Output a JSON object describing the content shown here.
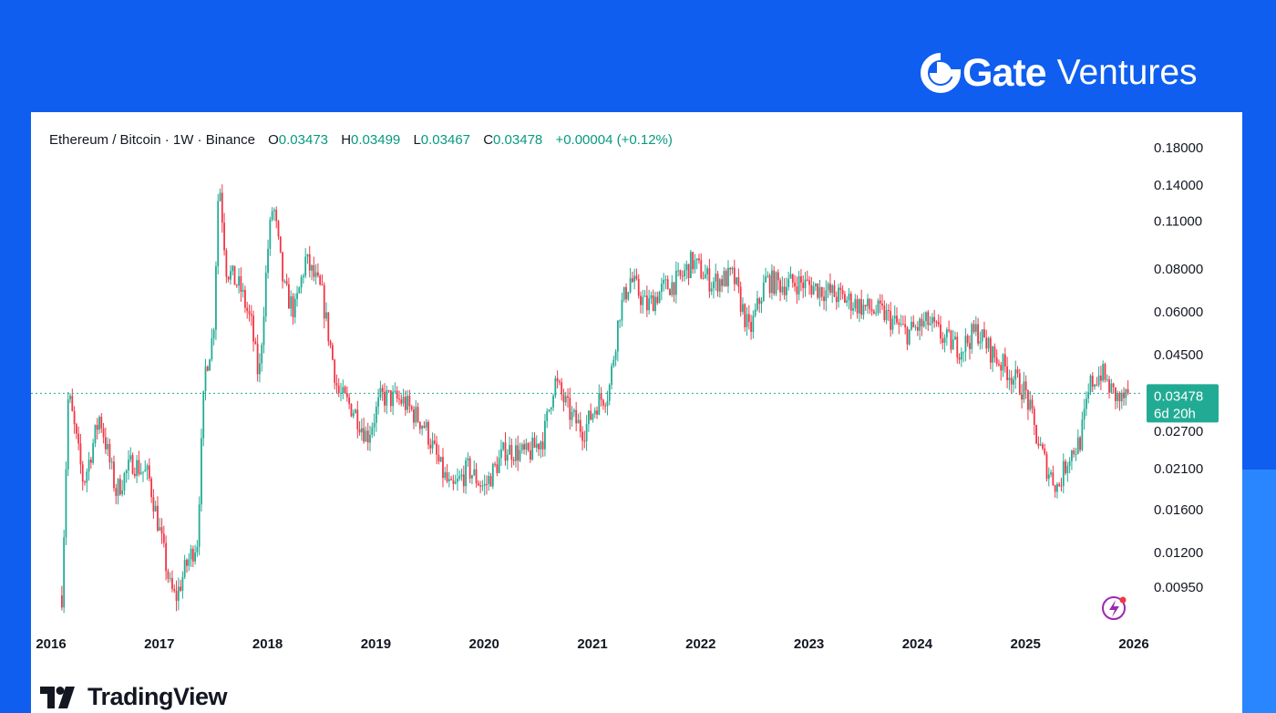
{
  "brand": {
    "name_bold": "Gate",
    "name_light": "Ventures",
    "logo_icon": "gate-logo-icon"
  },
  "legend": {
    "symbol": "Ethereum / Bitcoin · 1W · Binance",
    "open_label": "O",
    "open": "0.03473",
    "high_label": "H",
    "high": "0.03499",
    "low_label": "L",
    "low": "0.03467",
    "close_label": "C",
    "close": "0.03478",
    "change": "+0.00004 (+0.12%)"
  },
  "price_badge": {
    "price": "0.03478",
    "countdown": "6d 20h",
    "color": "#22ab94"
  },
  "footer": {
    "brand": "TradingView",
    "icon": "tradingview-logo-icon"
  },
  "colors": {
    "up": "#22ab94",
    "down": "#f23645",
    "accent": "#0f5ef0"
  },
  "chart_data": {
    "type": "candlestick",
    "title": "",
    "scale": "log",
    "ylim": [
      0.0075,
      0.19
    ],
    "xlim": [
      2016.0,
      2026.0
    ],
    "y_ticks": [
      0.18,
      0.14,
      0.11,
      0.08,
      0.06,
      0.045,
      0.027,
      0.021,
      0.016,
      0.012,
      0.0095
    ],
    "y_tick_labels": [
      "0.18000",
      "0.14000",
      "0.11000",
      "0.08000",
      "0.06000",
      "0.04500",
      "0.02700",
      "0.02100",
      "0.01600",
      "0.01200",
      "0.00950"
    ],
    "x_ticks": [
      2016,
      2017,
      2018,
      2019,
      2020,
      2021,
      2022,
      2023,
      2024,
      2025,
      2026
    ],
    "x_tick_labels": [
      "2016",
      "2017",
      "2018",
      "2019",
      "2020",
      "2021",
      "2022",
      "2023",
      "2024",
      "2025",
      "2026"
    ],
    "current_price": 0.03478,
    "interval": "1W",
    "path": [
      [
        2016.1,
        0.009
      ],
      [
        2016.16,
        0.035
      ],
      [
        2016.3,
        0.019
      ],
      [
        2016.45,
        0.03
      ],
      [
        2016.6,
        0.018
      ],
      [
        2016.75,
        0.022
      ],
      [
        2016.9,
        0.02
      ],
      [
        2017.0,
        0.014
      ],
      [
        2017.1,
        0.0095
      ],
      [
        2017.15,
        0.0088
      ],
      [
        2017.25,
        0.011
      ],
      [
        2017.35,
        0.013
      ],
      [
        2017.42,
        0.04
      ],
      [
        2017.5,
        0.052
      ],
      [
        2017.55,
        0.15
      ],
      [
        2017.62,
        0.08
      ],
      [
        2017.75,
        0.07
      ],
      [
        2017.85,
        0.055
      ],
      [
        2017.92,
        0.038
      ],
      [
        2018.0,
        0.09
      ],
      [
        2018.05,
        0.125
      ],
      [
        2018.15,
        0.07
      ],
      [
        2018.25,
        0.06
      ],
      [
        2018.35,
        0.085
      ],
      [
        2018.5,
        0.068
      ],
      [
        2018.65,
        0.035
      ],
      [
        2018.8,
        0.031
      ],
      [
        2018.92,
        0.026
      ],
      [
        2019.05,
        0.034
      ],
      [
        2019.25,
        0.033
      ],
      [
        2019.45,
        0.028
      ],
      [
        2019.6,
        0.021
      ],
      [
        2019.7,
        0.018
      ],
      [
        2019.85,
        0.021
      ],
      [
        2020.0,
        0.0185
      ],
      [
        2020.2,
        0.024
      ],
      [
        2020.4,
        0.023
      ],
      [
        2020.55,
        0.026
      ],
      [
        2020.65,
        0.038
      ],
      [
        2020.8,
        0.03
      ],
      [
        2020.92,
        0.027
      ],
      [
        2021.05,
        0.033
      ],
      [
        2021.15,
        0.035
      ],
      [
        2021.25,
        0.06
      ],
      [
        2021.35,
        0.075
      ],
      [
        2021.5,
        0.062
      ],
      [
        2021.65,
        0.07
      ],
      [
        2021.8,
        0.074
      ],
      [
        2021.92,
        0.084
      ],
      [
        2022.1,
        0.073
      ],
      [
        2022.3,
        0.076
      ],
      [
        2022.45,
        0.052
      ],
      [
        2022.6,
        0.074
      ],
      [
        2022.75,
        0.072
      ],
      [
        2022.9,
        0.073
      ],
      [
        2023.1,
        0.07
      ],
      [
        2023.3,
        0.066
      ],
      [
        2023.5,
        0.062
      ],
      [
        2023.7,
        0.059
      ],
      [
        2023.9,
        0.052
      ],
      [
        2024.1,
        0.056
      ],
      [
        2024.25,
        0.05
      ],
      [
        2024.4,
        0.047
      ],
      [
        2024.55,
        0.053
      ],
      [
        2024.7,
        0.045
      ],
      [
        2024.85,
        0.04
      ],
      [
        2025.0,
        0.035
      ],
      [
        2025.1,
        0.026
      ],
      [
        2025.2,
        0.021
      ],
      [
        2025.3,
        0.0185
      ],
      [
        2025.4,
        0.023
      ],
      [
        2025.5,
        0.025
      ],
      [
        2025.6,
        0.037
      ],
      [
        2025.7,
        0.04
      ],
      [
        2025.8,
        0.035
      ],
      [
        2025.88,
        0.033
      ],
      [
        2025.95,
        0.0348
      ]
    ]
  }
}
